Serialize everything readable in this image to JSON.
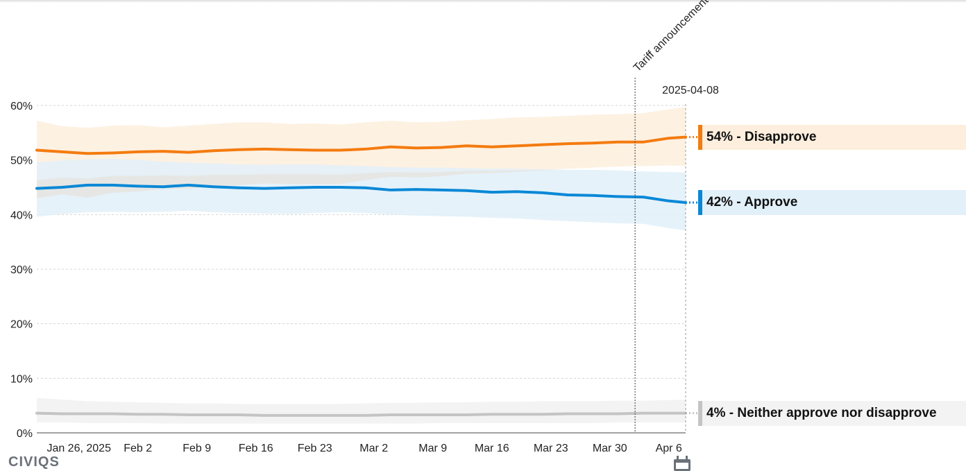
{
  "brand": {
    "logo_text": "CIVIQS"
  },
  "icons": {
    "calendar": "calendar-icon"
  },
  "chart_data": {
    "type": "line",
    "ylim": [
      0,
      60
    ],
    "yticks": [
      "0%",
      "10%",
      "20%",
      "30%",
      "40%",
      "50%",
      "60%"
    ],
    "xticks": [
      "Jan 26, 2025",
      "Feb 2",
      "Feb 9",
      "Feb 16",
      "Feb 23",
      "Mar 2",
      "Mar 9",
      "Mar 16",
      "Mar 23",
      "Mar 30",
      "Apr 6"
    ],
    "x": [
      "2025-01-21",
      "2025-01-24",
      "2025-01-27",
      "2025-01-30",
      "2025-02-02",
      "2025-02-05",
      "2025-02-08",
      "2025-02-11",
      "2025-02-14",
      "2025-02-17",
      "2025-02-20",
      "2025-02-23",
      "2025-02-26",
      "2025-03-01",
      "2025-03-04",
      "2025-03-07",
      "2025-03-10",
      "2025-03-13",
      "2025-03-16",
      "2025-03-19",
      "2025-03-22",
      "2025-03-25",
      "2025-03-28",
      "2025-03-31",
      "2025-04-03",
      "2025-04-06",
      "2025-04-08"
    ],
    "hover_date": "2025-04-08",
    "annotation": {
      "label": "Tariff announcement",
      "date": "2025-04-02"
    },
    "series": [
      {
        "name": "Disapprove",
        "legend": "54% - Disapprove",
        "color": "#f47b0f",
        "band_color": "#fdeedd",
        "values": [
          51.8,
          51.5,
          51.2,
          51.3,
          51.5,
          51.6,
          51.4,
          51.7,
          51.9,
          52.0,
          51.9,
          51.8,
          51.8,
          52.0,
          52.4,
          52.2,
          52.3,
          52.6,
          52.4,
          52.6,
          52.8,
          53.0,
          53.1,
          53.3,
          53.3,
          54.0,
          54.2
        ],
        "upper": [
          57.2,
          56.2,
          55.9,
          56.3,
          56.4,
          56.0,
          56.3,
          56.6,
          56.9,
          56.9,
          56.6,
          56.7,
          56.5,
          56.9,
          57.2,
          56.9,
          57.0,
          57.3,
          57.5,
          57.8,
          57.9,
          58.1,
          58.3,
          58.4,
          58.6,
          59.3,
          59.7
        ],
        "lower": [
          46.3,
          46.8,
          46.6,
          47.1,
          47.1,
          47.2,
          47.1,
          47.3,
          47.3,
          47.4,
          47.4,
          47.4,
          47.3,
          47.6,
          47.8,
          47.7,
          47.8,
          48.0,
          48.0,
          48.1,
          48.2,
          48.4,
          48.6,
          48.8,
          48.9,
          49.0,
          48.9
        ]
      },
      {
        "name": "Approve",
        "legend": "42% - Approve",
        "color": "#0a88d6",
        "band_color": "#e2f0f9",
        "values": [
          44.8,
          45.0,
          45.4,
          45.4,
          45.2,
          45.1,
          45.4,
          45.1,
          44.9,
          44.8,
          44.9,
          45.0,
          45.0,
          44.9,
          44.5,
          44.6,
          44.5,
          44.4,
          44.1,
          44.2,
          44.0,
          43.6,
          43.5,
          43.3,
          43.2,
          42.5,
          42.2
        ],
        "upper": [
          49.6,
          49.9,
          50.1,
          50.2,
          50.0,
          49.7,
          49.5,
          49.4,
          49.2,
          49.1,
          49.2,
          49.2,
          49.0,
          48.9,
          48.7,
          48.6,
          48.6,
          48.5,
          48.4,
          48.4,
          48.3,
          48.2,
          48.2,
          48.1,
          47.9,
          47.8,
          47.7
        ],
        "lower": [
          39.6,
          40.1,
          40.4,
          40.5,
          40.4,
          40.5,
          40.7,
          40.4,
          40.3,
          40.2,
          40.1,
          40.3,
          40.4,
          40.3,
          40.0,
          39.8,
          39.7,
          39.6,
          39.4,
          39.3,
          39.0,
          38.8,
          38.6,
          38.4,
          38.3,
          37.5,
          37.1
        ]
      },
      {
        "name": "Neither approve nor disapprove",
        "legend": "4% - Neither approve nor disapprove",
        "color": "#c4c4c4",
        "band_color": "#f3f3f3",
        "values": [
          3.6,
          3.5,
          3.5,
          3.5,
          3.4,
          3.4,
          3.3,
          3.3,
          3.3,
          3.2,
          3.2,
          3.2,
          3.2,
          3.2,
          3.3,
          3.3,
          3.3,
          3.3,
          3.4,
          3.4,
          3.4,
          3.5,
          3.5,
          3.5,
          3.6,
          3.6,
          3.6
        ],
        "upper": [
          6.4,
          6.1,
          5.8,
          5.7,
          5.6,
          5.5,
          5.4,
          5.4,
          5.3,
          5.3,
          5.3,
          5.3,
          5.3,
          5.4,
          5.5,
          5.5,
          5.6,
          5.6,
          5.7,
          5.7,
          5.8,
          5.8,
          5.8,
          5.9,
          5.9,
          6.0,
          6.1
        ],
        "lower": [
          1.9,
          1.9,
          1.8,
          1.8,
          1.8,
          1.7,
          1.7,
          1.7,
          1.7,
          1.7,
          1.7,
          1.7,
          1.7,
          1.7,
          1.7,
          1.7,
          1.8,
          1.8,
          1.8,
          1.8,
          1.8,
          1.8,
          1.8,
          1.9,
          1.9,
          1.9,
          1.9
        ]
      }
    ]
  }
}
